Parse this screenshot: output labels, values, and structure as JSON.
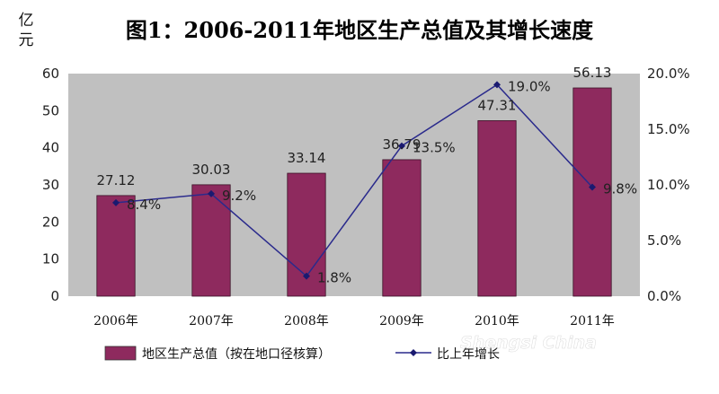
{
  "chart_data": {
    "type": "bar",
    "title": "图1：2006-2011年地区生产总值及其增长速度",
    "y_left_unit": "亿元",
    "categories": [
      "2006年",
      "2007年",
      "2008年",
      "2009年",
      "2010年",
      "2011年"
    ],
    "series": [
      {
        "name": "地区生产总值（按在地口径核算）",
        "type": "bar",
        "axis": "left",
        "values": [
          27.12,
          30.03,
          33.14,
          36.79,
          47.31,
          56.13
        ],
        "labels": [
          "27.12",
          "30.03",
          "33.14",
          "36.79",
          "47.31",
          "56.13"
        ]
      },
      {
        "name": "比上年增长",
        "type": "line",
        "axis": "right",
        "values": [
          8.4,
          9.2,
          1.8,
          13.5,
          19.0,
          9.8
        ],
        "labels": [
          "8.4%",
          "9.2%",
          "1.8%",
          "13.5%",
          "19.0%",
          "9.8%"
        ]
      }
    ],
    "y_left": {
      "min": 0,
      "max": 60,
      "ticks": [
        "0",
        "10",
        "20",
        "30",
        "40",
        "50",
        "60"
      ]
    },
    "y_right": {
      "min": 0,
      "max": 20,
      "ticks": [
        "0.0%",
        "5.0%",
        "10.0%",
        "15.0%",
        "20.0%"
      ]
    },
    "legend_position": "bottom",
    "grid": false,
    "colors": {
      "bar": "#8e2a5e",
      "line": "#2a2a8c",
      "plot_bg": "#c0c0c0"
    }
  },
  "watermark": "Shengsi China"
}
